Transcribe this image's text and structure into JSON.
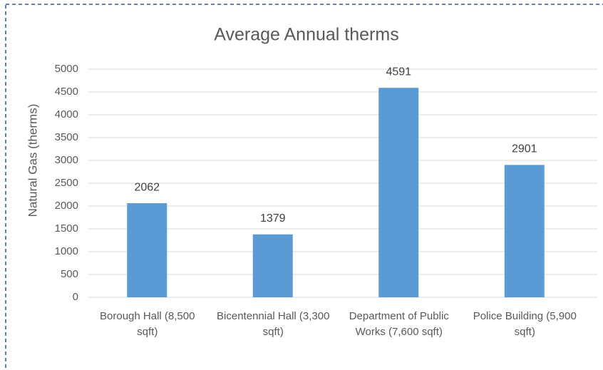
{
  "chart_data": {
    "type": "bar",
    "title": "Average Annual therms",
    "y_label": "Natural Gas (therms)",
    "categories": [
      "Borough Hall (8,500 sqft)",
      "Bicentennial Hall (3,300 sqft)",
      "Department of Public Works (7,600 sqft)",
      "Police Building (5,900 sqft)"
    ],
    "values": [
      2062,
      1379,
      4591,
      2901
    ],
    "color": "#5b9bd5",
    "ylim": [
      0,
      5000
    ],
    "yticks": [
      0,
      500,
      1000,
      1500,
      2000,
      2500,
      3000,
      3500,
      4000,
      4500,
      5000
    ],
    "grid": true
  }
}
